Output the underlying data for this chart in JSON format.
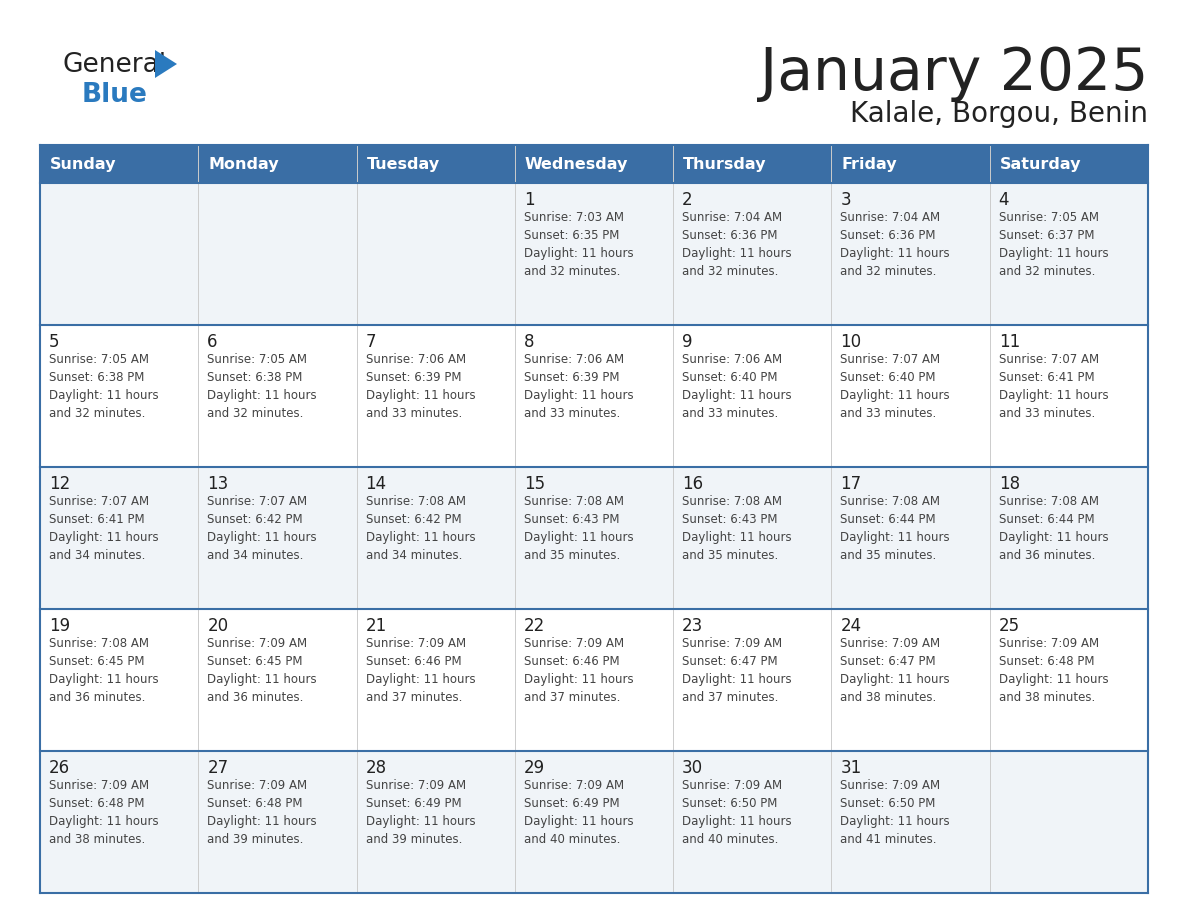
{
  "title": "January 2025",
  "subtitle": "Kalale, Borgou, Benin",
  "header_bg": "#3a6ea5",
  "header_text": "#ffffff",
  "cell_bg_light": "#f0f4f8",
  "cell_bg_white": "#ffffff",
  "border_color": "#3a6ea5",
  "row_separator_color": "#3a6ea5",
  "col_separator_color": "#cccccc",
  "day_headers": [
    "Sunday",
    "Monday",
    "Tuesday",
    "Wednesday",
    "Thursday",
    "Friday",
    "Saturday"
  ],
  "weeks": [
    [
      {
        "day": "",
        "info": ""
      },
      {
        "day": "",
        "info": ""
      },
      {
        "day": "",
        "info": ""
      },
      {
        "day": "1",
        "info": "Sunrise: 7:03 AM\nSunset: 6:35 PM\nDaylight: 11 hours\nand 32 minutes."
      },
      {
        "day": "2",
        "info": "Sunrise: 7:04 AM\nSunset: 6:36 PM\nDaylight: 11 hours\nand 32 minutes."
      },
      {
        "day": "3",
        "info": "Sunrise: 7:04 AM\nSunset: 6:36 PM\nDaylight: 11 hours\nand 32 minutes."
      },
      {
        "day": "4",
        "info": "Sunrise: 7:05 AM\nSunset: 6:37 PM\nDaylight: 11 hours\nand 32 minutes."
      }
    ],
    [
      {
        "day": "5",
        "info": "Sunrise: 7:05 AM\nSunset: 6:38 PM\nDaylight: 11 hours\nand 32 minutes."
      },
      {
        "day": "6",
        "info": "Sunrise: 7:05 AM\nSunset: 6:38 PM\nDaylight: 11 hours\nand 32 minutes."
      },
      {
        "day": "7",
        "info": "Sunrise: 7:06 AM\nSunset: 6:39 PM\nDaylight: 11 hours\nand 33 minutes."
      },
      {
        "day": "8",
        "info": "Sunrise: 7:06 AM\nSunset: 6:39 PM\nDaylight: 11 hours\nand 33 minutes."
      },
      {
        "day": "9",
        "info": "Sunrise: 7:06 AM\nSunset: 6:40 PM\nDaylight: 11 hours\nand 33 minutes."
      },
      {
        "day": "10",
        "info": "Sunrise: 7:07 AM\nSunset: 6:40 PM\nDaylight: 11 hours\nand 33 minutes."
      },
      {
        "day": "11",
        "info": "Sunrise: 7:07 AM\nSunset: 6:41 PM\nDaylight: 11 hours\nand 33 minutes."
      }
    ],
    [
      {
        "day": "12",
        "info": "Sunrise: 7:07 AM\nSunset: 6:41 PM\nDaylight: 11 hours\nand 34 minutes."
      },
      {
        "day": "13",
        "info": "Sunrise: 7:07 AM\nSunset: 6:42 PM\nDaylight: 11 hours\nand 34 minutes."
      },
      {
        "day": "14",
        "info": "Sunrise: 7:08 AM\nSunset: 6:42 PM\nDaylight: 11 hours\nand 34 minutes."
      },
      {
        "day": "15",
        "info": "Sunrise: 7:08 AM\nSunset: 6:43 PM\nDaylight: 11 hours\nand 35 minutes."
      },
      {
        "day": "16",
        "info": "Sunrise: 7:08 AM\nSunset: 6:43 PM\nDaylight: 11 hours\nand 35 minutes."
      },
      {
        "day": "17",
        "info": "Sunrise: 7:08 AM\nSunset: 6:44 PM\nDaylight: 11 hours\nand 35 minutes."
      },
      {
        "day": "18",
        "info": "Sunrise: 7:08 AM\nSunset: 6:44 PM\nDaylight: 11 hours\nand 36 minutes."
      }
    ],
    [
      {
        "day": "19",
        "info": "Sunrise: 7:08 AM\nSunset: 6:45 PM\nDaylight: 11 hours\nand 36 minutes."
      },
      {
        "day": "20",
        "info": "Sunrise: 7:09 AM\nSunset: 6:45 PM\nDaylight: 11 hours\nand 36 minutes."
      },
      {
        "day": "21",
        "info": "Sunrise: 7:09 AM\nSunset: 6:46 PM\nDaylight: 11 hours\nand 37 minutes."
      },
      {
        "day": "22",
        "info": "Sunrise: 7:09 AM\nSunset: 6:46 PM\nDaylight: 11 hours\nand 37 minutes."
      },
      {
        "day": "23",
        "info": "Sunrise: 7:09 AM\nSunset: 6:47 PM\nDaylight: 11 hours\nand 37 minutes."
      },
      {
        "day": "24",
        "info": "Sunrise: 7:09 AM\nSunset: 6:47 PM\nDaylight: 11 hours\nand 38 minutes."
      },
      {
        "day": "25",
        "info": "Sunrise: 7:09 AM\nSunset: 6:48 PM\nDaylight: 11 hours\nand 38 minutes."
      }
    ],
    [
      {
        "day": "26",
        "info": "Sunrise: 7:09 AM\nSunset: 6:48 PM\nDaylight: 11 hours\nand 38 minutes."
      },
      {
        "day": "27",
        "info": "Sunrise: 7:09 AM\nSunset: 6:48 PM\nDaylight: 11 hours\nand 39 minutes."
      },
      {
        "day": "28",
        "info": "Sunrise: 7:09 AM\nSunset: 6:49 PM\nDaylight: 11 hours\nand 39 minutes."
      },
      {
        "day": "29",
        "info": "Sunrise: 7:09 AM\nSunset: 6:49 PM\nDaylight: 11 hours\nand 40 minutes."
      },
      {
        "day": "30",
        "info": "Sunrise: 7:09 AM\nSunset: 6:50 PM\nDaylight: 11 hours\nand 40 minutes."
      },
      {
        "day": "31",
        "info": "Sunrise: 7:09 AM\nSunset: 6:50 PM\nDaylight: 11 hours\nand 41 minutes."
      },
      {
        "day": "",
        "info": ""
      }
    ]
  ],
  "logo_general_color": "#222222",
  "logo_blue_color": "#2a7abf",
  "logo_triangle_color": "#2a7abf",
  "title_color": "#222222",
  "subtitle_color": "#222222",
  "day_number_color": "#222222",
  "info_text_color": "#444444"
}
